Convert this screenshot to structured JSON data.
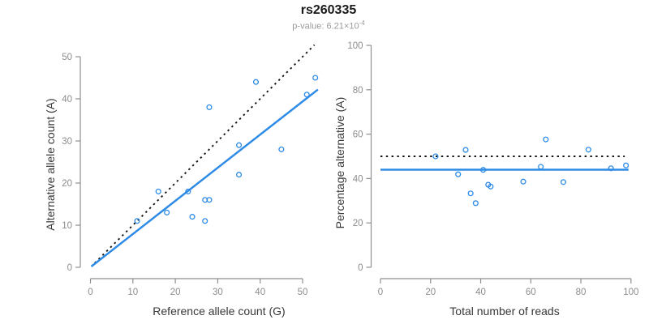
{
  "title": "rs260335",
  "subtitle": {
    "label": "p-value: 6.21×10",
    "exponent": "-4"
  },
  "colors": {
    "blue": "#2e8be6",
    "black": "#141414",
    "axis": "#8f8f8f",
    "tick_text": "#8c8c8c",
    "axis_title": "#383838",
    "title_text": "#1a1a1a",
    "subtitle_text": "#9a9a9a"
  },
  "chart_data": [
    {
      "type": "scatter",
      "name": "allele-count-scatter",
      "xlabel": "Reference allele count (G)",
      "ylabel": "Alternative allele count (A)",
      "xlim": [
        0,
        53.6
      ],
      "ylim": [
        0,
        53
      ],
      "xticks": [
        0,
        10,
        20,
        30,
        40,
        50
      ],
      "yticks": [
        0,
        10,
        20,
        30,
        40,
        50
      ],
      "grid": false,
      "legend": false,
      "point_color_key": "blue",
      "points": [
        [
          11,
          11
        ],
        [
          16,
          18
        ],
        [
          18,
          13
        ],
        [
          23,
          18
        ],
        [
          24,
          12
        ],
        [
          27,
          11
        ],
        [
          27,
          16
        ],
        [
          28,
          16
        ],
        [
          28,
          38
        ],
        [
          35,
          22
        ],
        [
          35,
          29
        ],
        [
          39,
          44
        ],
        [
          45,
          28
        ],
        [
          51,
          41
        ],
        [
          53,
          45
        ]
      ],
      "lines": [
        {
          "name": "identity-line",
          "style": "dotted",
          "color_key": "black",
          "x1": 1,
          "y1": 1,
          "x2": 52.8,
          "y2": 52.8
        },
        {
          "name": "fit-line",
          "style": "solid",
          "color_key": "blue",
          "x1": 0.2,
          "y1": 0.2,
          "x2": 53.6,
          "y2": 42.2
        }
      ]
    },
    {
      "type": "scatter",
      "name": "percentage-scatter",
      "xlabel": "Total number of reads",
      "ylabel": "Percentage alternative (A)",
      "xlim": [
        0,
        104
      ],
      "ylim": [
        0,
        104
      ],
      "xticks": [
        0,
        20,
        40,
        60,
        80,
        100
      ],
      "yticks": [
        0,
        20,
        40,
        60,
        80,
        100
      ],
      "grid": false,
      "legend": false,
      "point_color_key": "blue",
      "points": [
        [
          22,
          50
        ],
        [
          31,
          41.9
        ],
        [
          34,
          52.9
        ],
        [
          36,
          33.3
        ],
        [
          38,
          28.9
        ],
        [
          41,
          43.9
        ],
        [
          43,
          37.2
        ],
        [
          44,
          36.4
        ],
        [
          57,
          38.6
        ],
        [
          64,
          45.3
        ],
        [
          66,
          57.6
        ],
        [
          73,
          38.4
        ],
        [
          83,
          53
        ],
        [
          92,
          44.6
        ],
        [
          98,
          45.9
        ]
      ],
      "lines": [
        {
          "name": "expected-line",
          "style": "dotted",
          "color_key": "black",
          "x1": 0,
          "y1": 50,
          "x2": 97.5,
          "y2": 50
        },
        {
          "name": "mean-line",
          "style": "solid",
          "color_key": "blue",
          "x1": 0,
          "y1": 44,
          "x2": 99,
          "y2": 44
        }
      ]
    }
  ]
}
